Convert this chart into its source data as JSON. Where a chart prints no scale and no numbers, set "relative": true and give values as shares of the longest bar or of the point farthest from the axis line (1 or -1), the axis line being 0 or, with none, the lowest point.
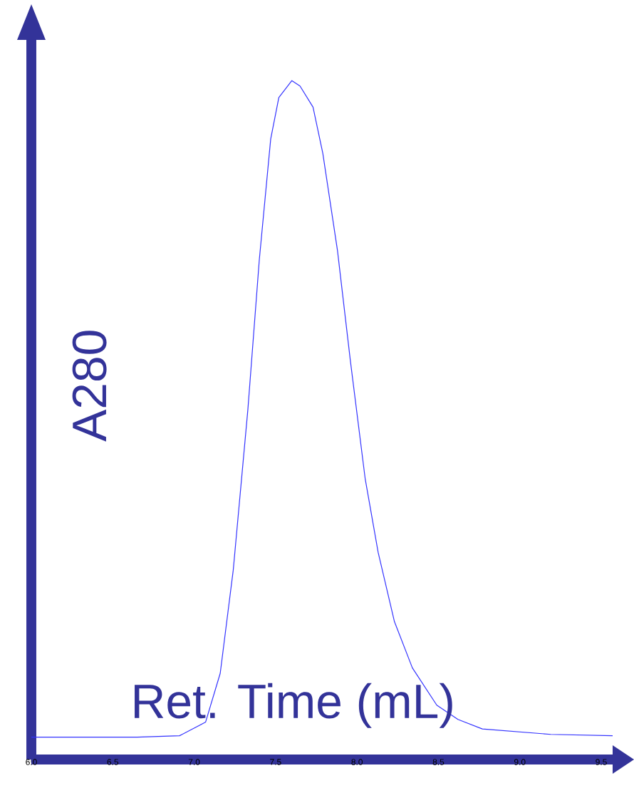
{
  "chart_data": {
    "type": "line",
    "relative": true,
    "xlabel": "Ret. Time (mL)",
    "ylabel": "A280",
    "xlim": [
      6.0,
      9.57
    ],
    "xticks": [
      {
        "value": 6.0,
        "label": "6.0"
      },
      6.5,
      {
        "value": 7.0,
        "label": "7.0"
      },
      7.5,
      {
        "value": 8.0,
        "label": "8.0"
      },
      8.5,
      {
        "value": 9.0,
        "label": "9.0"
      },
      9.5
    ],
    "x": [
      6.0,
      6.65,
      6.91,
      7.07,
      7.16,
      7.24,
      7.33,
      7.4,
      7.47,
      7.52,
      7.6,
      7.65,
      7.73,
      7.79,
      7.88,
      7.96,
      8.05,
      8.13,
      8.23,
      8.34,
      8.49,
      8.62,
      8.77,
      9.19,
      9.57
    ],
    "series": [
      {
        "color": "#3333ff",
        "values": [
          0.033,
          0.033,
          0.035,
          0.055,
          0.127,
          0.279,
          0.516,
          0.736,
          0.914,
          0.975,
          1.0,
          0.992,
          0.961,
          0.893,
          0.75,
          0.586,
          0.414,
          0.305,
          0.203,
          0.135,
          0.08,
          0.059,
          0.045,
          0.037,
          0.035
        ]
      }
    ]
  }
}
